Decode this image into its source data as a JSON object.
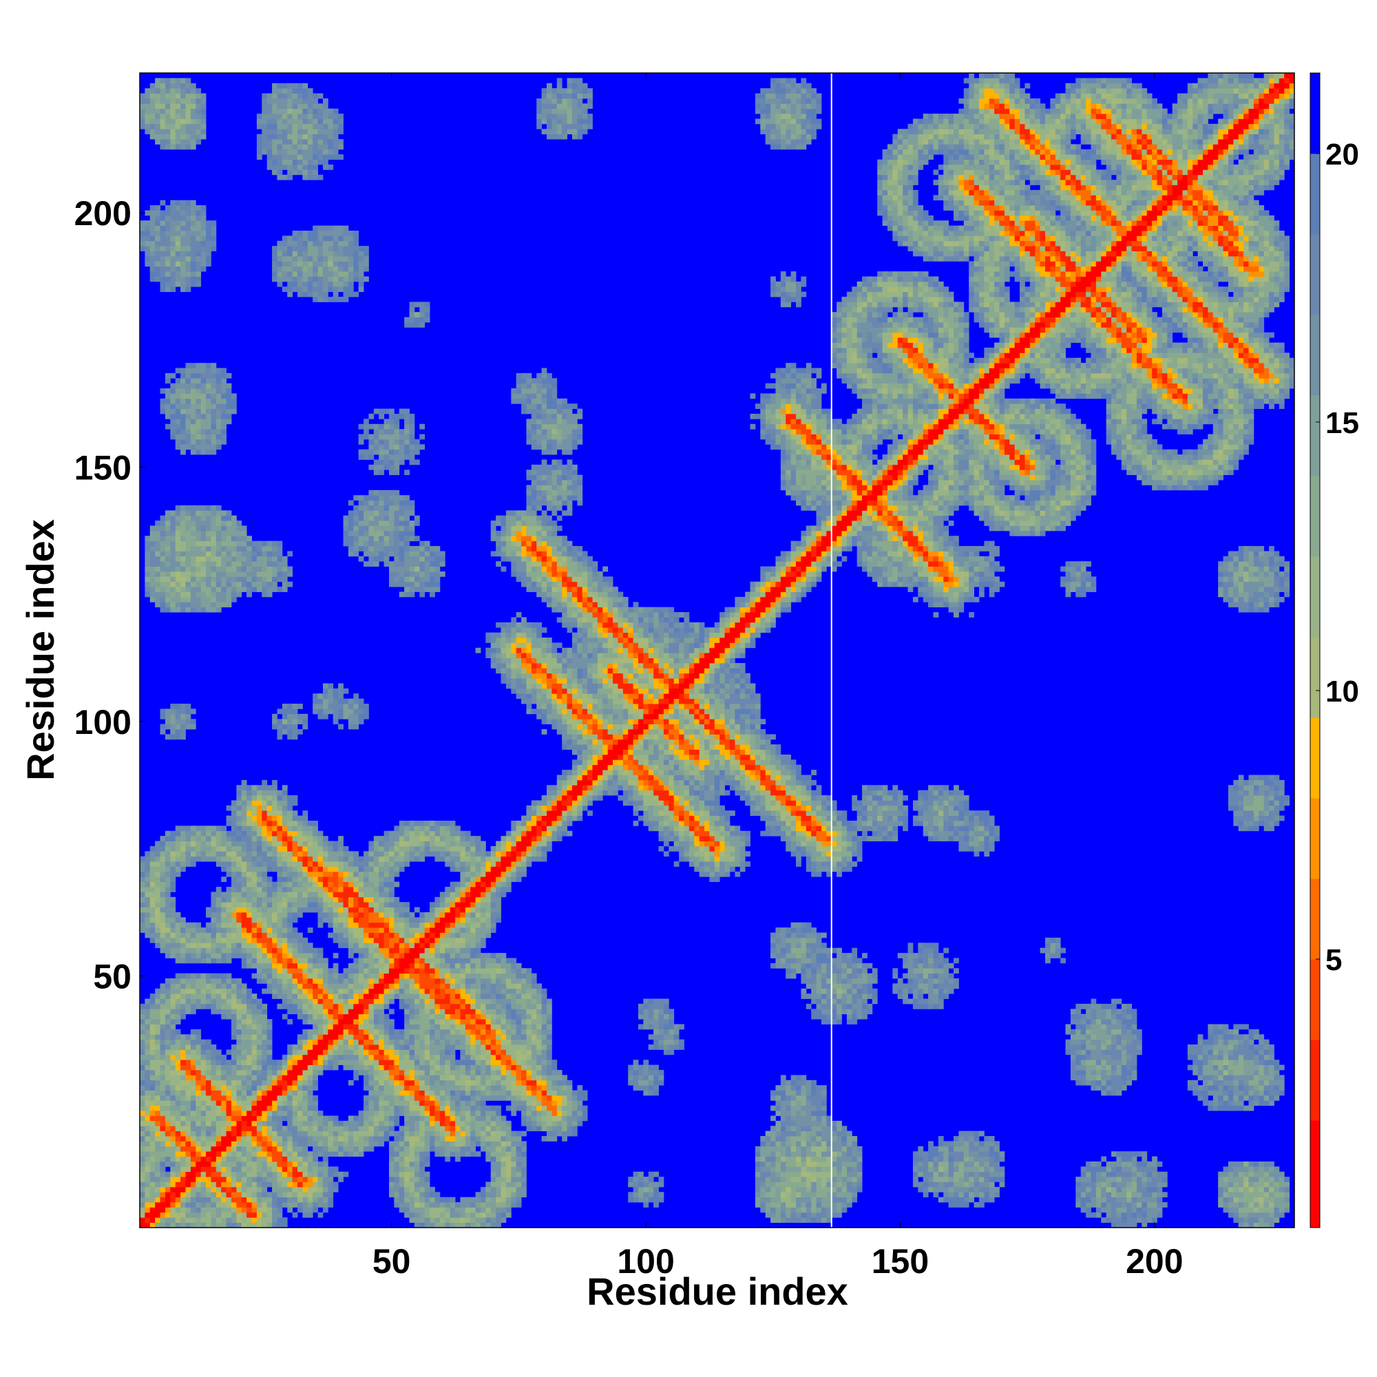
{
  "chart_data": {
    "type": "heatmap",
    "title": "",
    "xlabel": "Residue index",
    "ylabel": "Residue index",
    "xlim": [
      1,
      227
    ],
    "ylim": [
      1,
      227
    ],
    "x_ticks": [
      50,
      100,
      150,
      200
    ],
    "y_ticks": [
      50,
      100,
      150,
      200
    ],
    "colorbar": {
      "ticks": [
        5,
        10,
        15,
        20
      ],
      "range": [
        0,
        21.5
      ],
      "levels": [
        {
          "upto": 2,
          "color": "#ff0000"
        },
        {
          "upto": 3.5,
          "color": "#ff2400"
        },
        {
          "upto": 5,
          "color": "#ff4800"
        },
        {
          "upto": 6.5,
          "color": "#ff6c00"
        },
        {
          "upto": 8,
          "color": "#ff9200"
        },
        {
          "upto": 9.5,
          "color": "#ffb400"
        },
        {
          "upto": 11,
          "color": "#a6b87a"
        },
        {
          "upto": 12.5,
          "color": "#98b487"
        },
        {
          "upto": 14,
          "color": "#8aaa90"
        },
        {
          "upto": 15.5,
          "color": "#7f9f9b"
        },
        {
          "upto": 17,
          "color": "#7392a5"
        },
        {
          "upto": 18.5,
          "color": "#6a87b0"
        },
        {
          "upto": 20,
          "color": "#5d7fb8"
        },
        {
          "upto": 21.5,
          "color": "#0000ff"
        }
      ]
    },
    "background_color": "#0000ff",
    "diagonal": {
      "from": 1,
      "to": 227,
      "value": 0
    },
    "divider_at": 136,
    "bands": [
      {
        "a": [
          3,
          23
        ],
        "b": [
          23,
          3
        ],
        "value": 6.5
      },
      {
        "a": [
          9,
          33
        ],
        "b": [
          33,
          9
        ],
        "value": 6.5
      },
      {
        "a": [
          20,
          62
        ],
        "b": [
          62,
          20
        ],
        "value": 6.5
      },
      {
        "a": [
          42,
          63
        ],
        "b": [
          63,
          42
        ],
        "value": 6.5
      },
      {
        "a": [
          24,
          82
        ],
        "b": [
          82,
          24
        ],
        "value": 6.5
      },
      {
        "a": [
          38,
          70
        ],
        "b": [
          70,
          38
        ],
        "value": 6.5
      },
      {
        "a": [
          75,
          114
        ],
        "b": [
          114,
          75
        ],
        "value": 6.5
      },
      {
        "a": [
          93,
          110
        ],
        "b": [
          110,
          93
        ],
        "value": 6.5
      },
      {
        "a": [
          76,
          136
        ],
        "b": [
          136,
          76
        ],
        "value": 6.5
      },
      {
        "a": [
          128,
          160
        ],
        "b": [
          160,
          128
        ],
        "value": 6.5
      },
      {
        "a": [
          150,
          175
        ],
        "b": [
          175,
          150
        ],
        "value": 6.5
      },
      {
        "a": [
          163,
          206
        ],
        "b": [
          206,
          163
        ],
        "value": 6.5
      },
      {
        "a": [
          168,
          222
        ],
        "b": [
          222,
          168
        ],
        "value": 6.5
      },
      {
        "a": [
          175,
          198
        ],
        "b": [
          198,
          175
        ],
        "value": 6.5
      },
      {
        "a": [
          188,
          220
        ],
        "b": [
          220,
          188
        ],
        "value": 6.5
      },
      {
        "a": [
          196,
          216
        ],
        "b": [
          216,
          196
        ],
        "value": 6.5
      }
    ],
    "blobs": [
      {
        "cx": 7,
        "cy": 220,
        "r": 7,
        "value": 13
      },
      {
        "cx": 32,
        "cy": 215,
        "r": 9,
        "value": 15
      },
      {
        "cx": 33,
        "cy": 190,
        "r": 7,
        "value": 15
      },
      {
        "cx": 8,
        "cy": 190,
        "r": 6,
        "value": 15
      },
      {
        "cx": 84,
        "cy": 220,
        "r": 6,
        "value": 15
      },
      {
        "cx": 128,
        "cy": 218,
        "r": 6,
        "value": 14
      },
      {
        "cx": 12,
        "cy": 132,
        "r": 11,
        "value": 13
      },
      {
        "cx": 12,
        "cy": 163,
        "r": 8,
        "value": 15
      },
      {
        "cx": 48,
        "cy": 138,
        "r": 8,
        "value": 15
      },
      {
        "cx": 82,
        "cy": 158,
        "r": 6,
        "value": 15
      },
      {
        "cx": 128,
        "cy": 185,
        "r": 4,
        "value": 16
      },
      {
        "cx": 130,
        "cy": 165,
        "r": 6,
        "value": 16
      },
      {
        "cx": 135,
        "cy": 150,
        "r": 9,
        "value": 13
      },
      {
        "cx": 100,
        "cy": 105,
        "r": 18,
        "value": 14
      },
      {
        "cx": 146,
        "cy": 82,
        "r": 6,
        "value": 15
      },
      {
        "cx": 165,
        "cy": 78,
        "r": 5,
        "value": 16
      },
      {
        "cx": 155,
        "cy": 50,
        "r": 7,
        "value": 16
      },
      {
        "cx": 130,
        "cy": 55,
        "r": 6,
        "value": 15
      },
      {
        "cx": 190,
        "cy": 38,
        "r": 8,
        "value": 15
      },
      {
        "cx": 220,
        "cy": 30,
        "r": 6,
        "value": 15
      },
      {
        "cx": 222,
        "cy": 85,
        "r": 5,
        "value": 16
      },
      {
        "cx": 218,
        "cy": 8,
        "r": 6,
        "value": 13
      },
      {
        "cx": 195,
        "cy": 8,
        "r": 8,
        "value": 15
      },
      {
        "cx": 158,
        "cy": 12,
        "r": 6,
        "value": 15
      },
      {
        "cx": 128,
        "cy": 8,
        "r": 7,
        "value": 13
      },
      {
        "cx": 130,
        "cy": 25,
        "r": 6,
        "value": 15
      },
      {
        "cx": 104,
        "cy": 38,
        "r": 4,
        "value": 16
      },
      {
        "cx": 100,
        "cy": 8,
        "r": 4,
        "value": 16
      },
      {
        "cx": 55,
        "cy": 180,
        "r": 3,
        "value": 17
      },
      {
        "cx": 30,
        "cy": 100,
        "r": 4,
        "value": 16
      },
      {
        "cx": 42,
        "cy": 102,
        "r": 4,
        "value": 16
      },
      {
        "cx": 220,
        "cy": 128,
        "r": 7,
        "value": 15
      }
    ],
    "rings": [
      {
        "cx": 12,
        "cy": 12,
        "r": 10,
        "w": 4,
        "value": 12
      },
      {
        "cx": 13,
        "cy": 37,
        "r": 10,
        "w": 4,
        "value": 12
      },
      {
        "cx": 13,
        "cy": 66,
        "r": 10,
        "w": 4,
        "value": 12
      },
      {
        "cx": 63,
        "cy": 12,
        "r": 10,
        "w": 4,
        "value": 12
      },
      {
        "cx": 67,
        "cy": 40,
        "r": 11,
        "w": 4,
        "value": 12
      },
      {
        "cx": 57,
        "cy": 66,
        "r": 11,
        "w": 4,
        "value": 12
      },
      {
        "cx": 37,
        "cy": 57,
        "r": 11,
        "w": 4,
        "value": 12
      },
      {
        "cx": 40,
        "cy": 27,
        "r": 9,
        "w": 4,
        "value": 12
      },
      {
        "cx": 150,
        "cy": 150,
        "r": 10,
        "w": 4,
        "value": 12
      },
      {
        "cx": 150,
        "cy": 175,
        "r": 10,
        "w": 4,
        "value": 12
      },
      {
        "cx": 175,
        "cy": 150,
        "r": 10,
        "w": 4,
        "value": 12
      },
      {
        "cx": 160,
        "cy": 205,
        "r": 11,
        "w": 4,
        "value": 12
      },
      {
        "cx": 205,
        "cy": 160,
        "r": 11,
        "w": 4,
        "value": 12
      },
      {
        "cx": 177,
        "cy": 186,
        "r": 10,
        "w": 4,
        "value": 12
      },
      {
        "cx": 186,
        "cy": 177,
        "r": 10,
        "w": 4,
        "value": 12
      },
      {
        "cx": 190,
        "cy": 213,
        "r": 10,
        "w": 4,
        "value": 12
      },
      {
        "cx": 213,
        "cy": 190,
        "r": 10,
        "w": 4,
        "value": 12
      },
      {
        "cx": 215,
        "cy": 215,
        "r": 9,
        "w": 4,
        "value": 12
      }
    ]
  }
}
